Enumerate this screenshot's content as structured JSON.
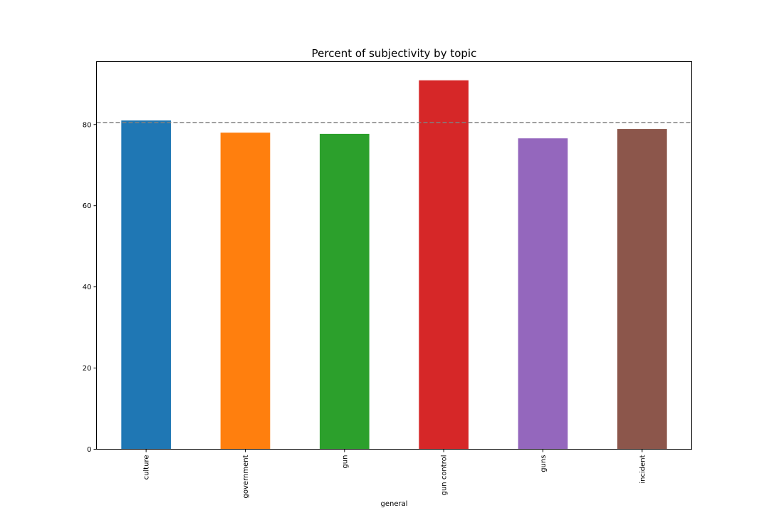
{
  "chart_data": {
    "type": "bar",
    "title": "Percent of subjectivity by topic",
    "xlabel": "general",
    "ylabel": "",
    "categories": [
      "culture",
      "government",
      "gun",
      "gun control",
      "guns",
      "incident"
    ],
    "values": [
      81.0,
      78.0,
      77.7,
      90.9,
      76.6,
      78.9
    ],
    "colors": [
      "#1f77b4",
      "#ff7f0e",
      "#2ca02c",
      "#d62728",
      "#9467bd",
      "#8c564b"
    ],
    "ylim": [
      0,
      95.5
    ],
    "yticks": [
      0,
      20,
      40,
      60,
      80
    ],
    "reference_line": {
      "value": 80.5,
      "style": "dashed",
      "color": "#808080"
    },
    "grid": false,
    "legend": "none"
  }
}
